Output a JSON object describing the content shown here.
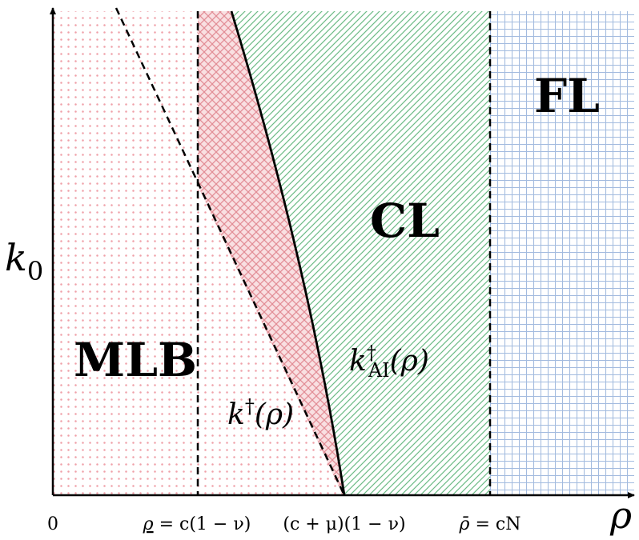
{
  "axes": {
    "y_label": "k",
    "y_label_sub": "0",
    "x_label": "ρ",
    "origin_label": "0"
  },
  "ticks": {
    "t1_sym": "ρ",
    "t1_rest": " = c(1 − ν)",
    "t2": "(c + μ)(1 − ν)",
    "t3_sym": "ρ̄",
    "t3_rest": " = cN"
  },
  "regions": {
    "mlb": "MLB",
    "cl": "CL",
    "fl": "FL"
  },
  "curves": {
    "dagger_base": "k",
    "dagger_sup": "†",
    "dagger_arg": "(ρ)",
    "ai_base": "k",
    "ai_sup": "†",
    "ai_sub": "AI",
    "ai_arg": "(ρ)"
  },
  "colors": {
    "mlb_fill": "#f0a0a8",
    "crosshatch": "#ea9aa2",
    "cl_hatch": "#6dbb86",
    "fl_grid": "#9fb7db",
    "lines": "#000000"
  }
}
